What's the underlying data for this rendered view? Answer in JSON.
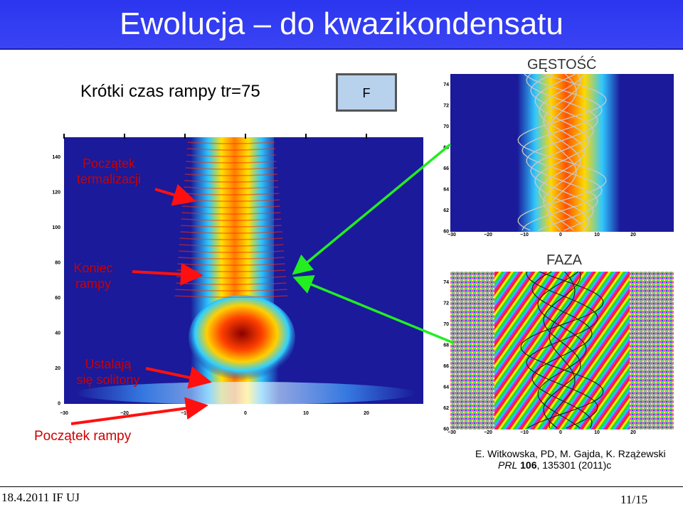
{
  "slide": {
    "title": "Ewolucja – do kwazikondensatu",
    "subtitle": "Krótki czas rampy tr=75",
    "f_box": "F",
    "density_label": "GĘSTOŚĆ",
    "phase_label": "FAZA"
  },
  "annotations": {
    "thermalization_line1": "Początek",
    "thermalization_line2": "termalizacji",
    "ramp_end_line1": "Koniec",
    "ramp_end_line2": "rampy",
    "solitons_line1": "Ustalają",
    "solitons_line2": "się solitony",
    "ramp_start": "Początek rampy"
  },
  "main_plot": {
    "y_ticks": [
      "140",
      "120",
      "100",
      "80",
      "60",
      "40",
      "20",
      "0"
    ],
    "x_ticks": [
      "−30",
      "−20",
      "−10",
      "0",
      "10",
      "20"
    ]
  },
  "density_plot": {
    "y_ticks": [
      "74",
      "72",
      "70",
      "68",
      "66",
      "64",
      "62",
      "60"
    ],
    "x_ticks": [
      "−30",
      "−20",
      "−10",
      "0",
      "10",
      "20"
    ]
  },
  "phase_plot": {
    "y_ticks": [
      "74",
      "72",
      "70",
      "68",
      "66",
      "64",
      "62",
      "60"
    ],
    "x_ticks": [
      "−30",
      "−20",
      "−10",
      "0",
      "10",
      "20"
    ]
  },
  "citation": {
    "authors": "E. Witkowska, PD, M. Gajda, K. Rzążewski",
    "journal": "PRL",
    "volume": "106",
    "rest": ", 135301 (2011)c"
  },
  "footer": {
    "date_venue": "18.4.2011 IF UJ",
    "page": "11/15"
  },
  "colors": {
    "title_bar": "#2f39f0",
    "plot_background": "#1a1a9a",
    "annotation_red": "#cc0000",
    "arrow_green": "#22dd22"
  }
}
